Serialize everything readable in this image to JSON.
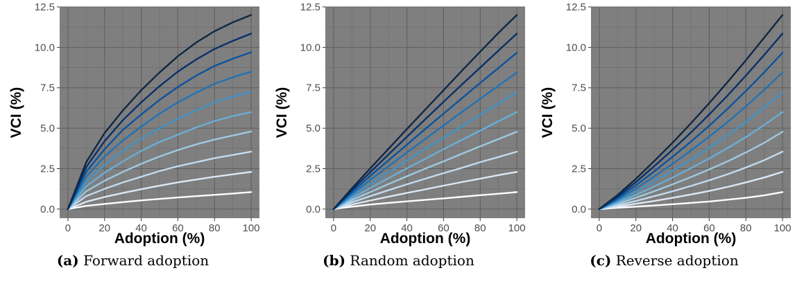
{
  "colors": {
    "panel_background": "#7f7f7f",
    "grid_major": "#5f5f5f",
    "grid_minor": "#717171",
    "series": [
      "#ffffff",
      "#dce9f6",
      "#c3dbee",
      "#9dcae2",
      "#6baed6",
      "#4293c7",
      "#2172b5",
      "#0b539d",
      "#08306b",
      "#0f2743"
    ]
  },
  "chart_data": [
    {
      "type": "line",
      "caption_letter": "(a)",
      "caption_text": "Forward adoption",
      "xlabel": "Adoption (%)",
      "ylabel": "VCI (%)",
      "xlim": [
        0,
        100
      ],
      "ylim": [
        0,
        12.5
      ],
      "xticks": [
        "0",
        "20",
        "40",
        "60",
        "80",
        "100"
      ],
      "yticks": [
        "0.0",
        "2.5",
        "5.0",
        "7.5",
        "10.0",
        "12.5"
      ],
      "grid": true,
      "legend": "none",
      "x": [
        0,
        10,
        20,
        30,
        40,
        50,
        60,
        70,
        80,
        90,
        100
      ],
      "series": [
        {
          "values": [
            0,
            0.2,
            0.32,
            0.43,
            0.54,
            0.63,
            0.72,
            0.8,
            0.88,
            0.96,
            1.05
          ]
        },
        {
          "values": [
            0,
            0.45,
            0.75,
            1.0,
            1.23,
            1.45,
            1.65,
            1.83,
            2.0,
            2.15,
            2.3
          ]
        },
        {
          "values": [
            0,
            0.8,
            1.25,
            1.65,
            2.0,
            2.35,
            2.65,
            2.9,
            3.15,
            3.35,
            3.55
          ]
        },
        {
          "values": [
            0,
            1.1,
            1.75,
            2.3,
            2.8,
            3.25,
            3.65,
            4.0,
            4.3,
            4.55,
            4.8
          ]
        },
        {
          "values": [
            0,
            1.4,
            2.25,
            2.95,
            3.6,
            4.15,
            4.6,
            5.05,
            5.45,
            5.75,
            6.0
          ]
        },
        {
          "values": [
            0,
            1.7,
            2.75,
            3.6,
            4.35,
            5.0,
            5.6,
            6.1,
            6.6,
            6.95,
            7.25
          ]
        },
        {
          "values": [
            0,
            2.0,
            3.25,
            4.25,
            5.1,
            5.9,
            6.6,
            7.2,
            7.75,
            8.15,
            8.5
          ]
        },
        {
          "values": [
            0,
            2.3,
            3.7,
            4.9,
            5.85,
            6.75,
            7.55,
            8.25,
            8.85,
            9.3,
            9.7
          ]
        },
        {
          "values": [
            0,
            2.6,
            4.2,
            5.5,
            6.6,
            7.6,
            8.5,
            9.25,
            9.9,
            10.4,
            10.85
          ]
        },
        {
          "values": [
            0,
            2.9,
            4.7,
            6.1,
            7.35,
            8.45,
            9.45,
            10.3,
            11.0,
            11.55,
            12.0
          ]
        }
      ]
    },
    {
      "type": "line",
      "caption_letter": "(b)",
      "caption_text": "Random adoption",
      "xlabel": "Adoption (%)",
      "ylabel": "VCI (%)",
      "xlim": [
        0,
        100
      ],
      "ylim": [
        0,
        12.5
      ],
      "xticks": [
        "0",
        "20",
        "40",
        "60",
        "80",
        "100"
      ],
      "yticks": [
        "0.0",
        "2.5",
        "5.0",
        "7.5",
        "10.0",
        "12.5"
      ],
      "grid": true,
      "legend": "none",
      "x": [
        0,
        10,
        20,
        30,
        40,
        50,
        60,
        70,
        80,
        90,
        100
      ],
      "series": [
        {
          "values": [
            0,
            0.15,
            0.28,
            0.38,
            0.48,
            0.57,
            0.66,
            0.76,
            0.86,
            0.95,
            1.05
          ]
        },
        {
          "values": [
            0,
            0.28,
            0.53,
            0.77,
            1.0,
            1.22,
            1.45,
            1.67,
            1.88,
            2.1,
            2.3
          ]
        },
        {
          "values": [
            0,
            0.42,
            0.8,
            1.17,
            1.53,
            1.88,
            2.22,
            2.55,
            2.9,
            3.22,
            3.55
          ]
        },
        {
          "values": [
            0,
            0.55,
            1.05,
            1.55,
            2.03,
            2.5,
            2.95,
            3.42,
            3.88,
            4.33,
            4.78
          ]
        },
        {
          "values": [
            0,
            0.67,
            1.3,
            1.92,
            2.52,
            3.1,
            3.7,
            4.28,
            4.85,
            5.43,
            6.0
          ]
        },
        {
          "values": [
            0,
            0.8,
            1.55,
            2.28,
            3.0,
            3.72,
            4.42,
            5.12,
            5.83,
            6.52,
            7.22
          ]
        },
        {
          "values": [
            0,
            0.93,
            1.8,
            2.65,
            3.5,
            4.33,
            5.17,
            6.0,
            6.82,
            7.63,
            8.45
          ]
        },
        {
          "values": [
            0,
            1.05,
            2.05,
            3.02,
            3.98,
            4.95,
            5.9,
            6.85,
            7.8,
            8.73,
            9.67
          ]
        },
        {
          "values": [
            0,
            1.17,
            2.28,
            3.38,
            4.47,
            5.55,
            6.63,
            7.7,
            8.75,
            9.8,
            10.85
          ]
        },
        {
          "values": [
            0,
            1.28,
            2.52,
            3.73,
            4.95,
            6.15,
            7.35,
            8.55,
            9.73,
            10.9,
            12.0
          ]
        }
      ]
    },
    {
      "type": "line",
      "caption_letter": "(c)",
      "caption_text": "Reverse adoption",
      "xlabel": "Adoption (%)",
      "ylabel": "VCI (%)",
      "xlim": [
        0,
        100
      ],
      "ylim": [
        0,
        12.5
      ],
      "xticks": [
        "0",
        "20",
        "40",
        "60",
        "80",
        "100"
      ],
      "yticks": [
        "0.0",
        "2.5",
        "5.0",
        "7.5",
        "10.0",
        "12.5"
      ],
      "grid": true,
      "legend": "none",
      "x": [
        0,
        10,
        20,
        30,
        40,
        50,
        60,
        70,
        80,
        90,
        100
      ],
      "series": [
        {
          "values": [
            0,
            0.08,
            0.15,
            0.22,
            0.3,
            0.38,
            0.47,
            0.58,
            0.7,
            0.85,
            1.05
          ]
        },
        {
          "values": [
            0,
            0.15,
            0.33,
            0.5,
            0.7,
            0.9,
            1.12,
            1.37,
            1.65,
            1.95,
            2.3
          ]
        },
        {
          "values": [
            0,
            0.23,
            0.5,
            0.8,
            1.1,
            1.43,
            1.78,
            2.15,
            2.57,
            3.02,
            3.55
          ]
        },
        {
          "values": [
            0,
            0.32,
            0.7,
            1.1,
            1.53,
            1.98,
            2.45,
            2.95,
            3.5,
            4.1,
            4.78
          ]
        },
        {
          "values": [
            0,
            0.4,
            0.88,
            1.4,
            1.95,
            2.53,
            3.13,
            3.77,
            4.45,
            5.2,
            6.0
          ]
        },
        {
          "values": [
            0,
            0.5,
            1.07,
            1.7,
            2.37,
            3.07,
            3.8,
            4.57,
            5.4,
            6.28,
            7.22
          ]
        },
        {
          "values": [
            0,
            0.58,
            1.27,
            2.02,
            2.8,
            3.62,
            4.48,
            5.38,
            6.35,
            7.37,
            8.45
          ]
        },
        {
          "values": [
            0,
            0.68,
            1.47,
            2.33,
            3.23,
            4.17,
            5.15,
            6.2,
            7.3,
            8.45,
            9.67
          ]
        },
        {
          "values": [
            0,
            0.77,
            1.67,
            2.65,
            3.67,
            4.73,
            5.85,
            7.02,
            8.25,
            9.53,
            10.85
          ]
        },
        {
          "values": [
            0,
            0.87,
            1.87,
            2.97,
            4.1,
            5.3,
            6.55,
            7.85,
            9.2,
            10.6,
            12.0
          ]
        }
      ]
    }
  ]
}
